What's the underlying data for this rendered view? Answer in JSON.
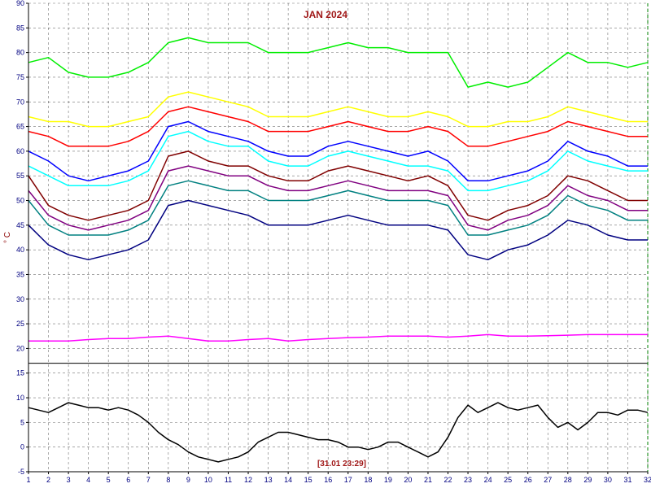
{
  "chart_data": {
    "type": "line",
    "title": "JAN 2024",
    "ylabel": "° C",
    "timestamp": "[31.01 23:29]",
    "xlim": [
      1,
      32
    ],
    "ylim": [
      -5,
      90
    ],
    "x_ticks": [
      1,
      2,
      3,
      4,
      5,
      6,
      7,
      8,
      9,
      10,
      11,
      12,
      13,
      14,
      15,
      16,
      17,
      18,
      19,
      20,
      21,
      22,
      23,
      24,
      25,
      26,
      27,
      28,
      29,
      30,
      31,
      32
    ],
    "y_ticks": [
      -5,
      0,
      5,
      10,
      15,
      20,
      25,
      30,
      35,
      40,
      45,
      50,
      55,
      60,
      65,
      70,
      75,
      80,
      85,
      90
    ],
    "grid": true,
    "colors": {
      "title": "#a01818",
      "stamp": "#a01818",
      "ticks": "#000080",
      "grid": "#000000",
      "divider": "#000000",
      "cursor": "#008000"
    },
    "series": [
      {
        "color": "#00ee00",
        "x": [
          1,
          2,
          3,
          4,
          5,
          6,
          7,
          8,
          9,
          10,
          11,
          12,
          13,
          14,
          15,
          16,
          17,
          18,
          19,
          20,
          21,
          22,
          23,
          24,
          25,
          26,
          27,
          28,
          29,
          30,
          31,
          32
        ],
        "values": [
          78,
          79,
          76,
          75,
          75,
          76,
          78,
          82,
          83,
          82,
          82,
          82,
          80,
          80,
          80,
          81,
          82,
          81,
          81,
          80,
          80,
          80,
          73,
          74,
          73,
          74,
          77,
          80,
          78,
          78,
          77,
          78
        ]
      },
      {
        "color": "#ffff00",
        "x": [
          1,
          2,
          3,
          4,
          5,
          6,
          7,
          8,
          9,
          10,
          11,
          12,
          13,
          14,
          15,
          16,
          17,
          18,
          19,
          20,
          21,
          22,
          23,
          24,
          25,
          26,
          27,
          28,
          29,
          30,
          31,
          32
        ],
        "values": [
          67,
          66,
          66,
          65,
          65,
          66,
          67,
          71,
          72,
          71,
          70,
          69,
          67,
          67,
          67,
          68,
          69,
          68,
          67,
          67,
          68,
          67,
          65,
          65,
          66,
          66,
          67,
          69,
          68,
          67,
          66,
          66
        ]
      },
      {
        "color": "#ff0000",
        "x": [
          1,
          2,
          3,
          4,
          5,
          6,
          7,
          8,
          9,
          10,
          11,
          12,
          13,
          14,
          15,
          16,
          17,
          18,
          19,
          20,
          21,
          22,
          23,
          24,
          25,
          26,
          27,
          28,
          29,
          30,
          31,
          32
        ],
        "values": [
          64,
          63,
          61,
          61,
          61,
          62,
          64,
          68,
          69,
          68,
          67,
          66,
          64,
          64,
          64,
          65,
          66,
          65,
          64,
          64,
          65,
          64,
          61,
          61,
          62,
          63,
          64,
          66,
          65,
          64,
          63,
          63
        ]
      },
      {
        "color": "#00ffff",
        "x": [
          1,
          2,
          3,
          4,
          5,
          6,
          7,
          8,
          9,
          10,
          11,
          12,
          13,
          14,
          15,
          16,
          17,
          18,
          19,
          20,
          21,
          22,
          23,
          24,
          25,
          26,
          27,
          28,
          29,
          30,
          31,
          32
        ],
        "values": [
          57,
          55,
          53,
          53,
          53,
          54,
          56,
          63,
          64,
          62,
          61,
          61,
          58,
          57,
          57,
          59,
          60,
          59,
          58,
          57,
          57,
          56,
          52,
          52,
          53,
          54,
          56,
          60,
          58,
          57,
          56,
          56
        ]
      },
      {
        "color": "#800000",
        "x": [
          1,
          2,
          3,
          4,
          5,
          6,
          7,
          8,
          9,
          10,
          11,
          12,
          13,
          14,
          15,
          16,
          17,
          18,
          19,
          20,
          21,
          22,
          23,
          24,
          25,
          26,
          27,
          28,
          29,
          30,
          31,
          32
        ],
        "values": [
          55,
          49,
          47,
          46,
          47,
          48,
          50,
          59,
          60,
          58,
          57,
          57,
          55,
          54,
          54,
          56,
          57,
          56,
          55,
          54,
          55,
          53,
          47,
          46,
          48,
          49,
          51,
          55,
          54,
          52,
          50,
          50
        ]
      },
      {
        "color": "#800080",
        "x": [
          1,
          2,
          3,
          4,
          5,
          6,
          7,
          8,
          9,
          10,
          11,
          12,
          13,
          14,
          15,
          16,
          17,
          18,
          19,
          20,
          21,
          22,
          23,
          24,
          25,
          26,
          27,
          28,
          29,
          30,
          31,
          32
        ],
        "values": [
          52,
          47,
          45,
          44,
          45,
          46,
          48,
          56,
          57,
          56,
          55,
          55,
          53,
          52,
          52,
          53,
          54,
          53,
          52,
          52,
          52,
          51,
          45,
          44,
          46,
          47,
          49,
          53,
          51,
          50,
          48,
          48
        ]
      },
      {
        "color": "#008080",
        "x": [
          1,
          2,
          3,
          4,
          5,
          6,
          7,
          8,
          9,
          10,
          11,
          12,
          13,
          14,
          15,
          16,
          17,
          18,
          19,
          20,
          21,
          22,
          23,
          24,
          25,
          26,
          27,
          28,
          29,
          30,
          31,
          32
        ],
        "values": [
          50,
          45,
          43,
          43,
          43,
          44,
          46,
          53,
          54,
          53,
          52,
          52,
          50,
          50,
          50,
          51,
          52,
          51,
          50,
          50,
          50,
          49,
          43,
          43,
          44,
          45,
          47,
          51,
          49,
          48,
          46,
          46
        ]
      },
      {
        "color": "#000080",
        "x": [
          1,
          2,
          3,
          4,
          5,
          6,
          7,
          8,
          9,
          10,
          11,
          12,
          13,
          14,
          15,
          16,
          17,
          18,
          19,
          20,
          21,
          22,
          23,
          24,
          25,
          26,
          27,
          28,
          29,
          30,
          31,
          32
        ],
        "values": [
          45,
          41,
          39,
          38,
          39,
          40,
          42,
          49,
          50,
          49,
          48,
          47,
          45,
          45,
          45,
          46,
          47,
          46,
          45,
          45,
          45,
          44,
          39,
          38,
          40,
          41,
          43,
          46,
          45,
          43,
          42,
          42
        ]
      },
      {
        "color": "#0000ff",
        "x": [
          1,
          2,
          3,
          4,
          5,
          6,
          7,
          8,
          9,
          10,
          11,
          12,
          13,
          14,
          15,
          16,
          17,
          18,
          19,
          20,
          21,
          22,
          23,
          24,
          25,
          26,
          27,
          28,
          29,
          30,
          31,
          32
        ],
        "values": [
          60,
          58,
          55,
          54,
          55,
          56,
          58,
          65,
          66,
          64,
          63,
          62,
          60,
          59,
          59,
          61,
          62,
          61,
          60,
          59,
          60,
          58,
          54,
          54,
          55,
          56,
          58,
          62,
          60,
          59,
          57,
          57
        ]
      },
      {
        "color": "#ff00ff",
        "x": [
          1,
          2,
          3,
          4,
          5,
          6,
          7,
          8,
          9,
          10,
          11,
          12,
          13,
          14,
          15,
          16,
          17,
          18,
          19,
          20,
          21,
          22,
          23,
          24,
          25,
          26,
          27,
          28,
          29,
          30,
          31,
          32
        ],
        "values": [
          21.5,
          21.5,
          21.5,
          21.8,
          22,
          22,
          22.3,
          22.5,
          22,
          21.5,
          21.5,
          21.8,
          22,
          21.5,
          21.8,
          22,
          22.2,
          22.3,
          22.5,
          22.5,
          22.5,
          22.3,
          22.5,
          22.8,
          22.5,
          22.5,
          22.6,
          22.7,
          22.8,
          22.8,
          22.8,
          22.8
        ]
      },
      {
        "color": "#000000",
        "x": [
          1,
          1.5,
          2,
          2.5,
          3,
          3.5,
          4,
          4.5,
          5,
          5.5,
          6,
          6.5,
          7,
          7.5,
          8,
          8.5,
          9,
          9.5,
          10,
          10.5,
          11,
          11.5,
          12,
          12.5,
          13,
          13.5,
          14,
          14.5,
          15,
          15.5,
          16,
          16.5,
          17,
          17.5,
          18,
          18.5,
          19,
          19.5,
          20,
          20.5,
          21,
          21.5,
          22,
          22.5,
          23,
          23.5,
          24,
          24.5,
          25,
          25.5,
          26,
          26.5,
          27,
          27.5,
          28,
          28.5,
          29,
          29.5,
          30,
          30.5,
          31,
          31.5,
          32
        ],
        "values": [
          8,
          7.5,
          7,
          8,
          9,
          8.5,
          8,
          8,
          7.5,
          8,
          7.5,
          6.5,
          5,
          3,
          1.5,
          0.5,
          -1,
          -2,
          -2.5,
          -3,
          -2.5,
          -2,
          -1,
          1,
          2,
          3,
          3,
          2.5,
          2,
          1.5,
          1.5,
          1,
          0,
          0,
          -0.5,
          0,
          1,
          1,
          0,
          -1,
          -2,
          -1,
          2,
          6,
          8.5,
          7,
          8,
          9,
          8,
          7.5,
          8,
          8.5,
          6,
          4,
          5,
          3.5,
          5,
          7,
          7,
          6.5,
          7.5,
          7.5,
          7
        ]
      }
    ],
    "cursor_x": 32
  }
}
